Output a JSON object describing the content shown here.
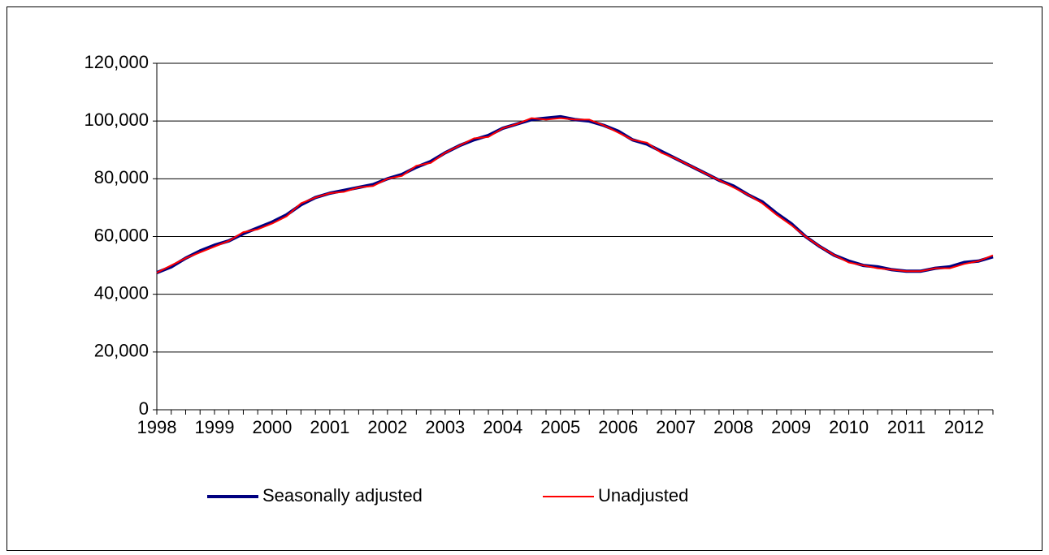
{
  "chart_data": {
    "type": "line",
    "categories": [
      "1998",
      null,
      null,
      null,
      "1999",
      null,
      null,
      null,
      "2000",
      null,
      null,
      null,
      "2001",
      null,
      null,
      null,
      "2002",
      null,
      null,
      null,
      "2003",
      null,
      null,
      null,
      "2004",
      null,
      null,
      null,
      "2005",
      null,
      null,
      null,
      "2006",
      null,
      null,
      null,
      "2007",
      null,
      null,
      null,
      "2008",
      null,
      null,
      null,
      "2009",
      null,
      null,
      null,
      "2010",
      null,
      null,
      null,
      "2011",
      null,
      null,
      null,
      "2012",
      null,
      null
    ],
    "series": [
      {
        "name": "Seasonally adjusted",
        "color": "#000080",
        "values": [
          47500,
          49500,
          52500,
          55000,
          57000,
          58500,
          61000,
          63000,
          65000,
          67500,
          71000,
          73500,
          75000,
          76000,
          77000,
          78000,
          80000,
          81500,
          84000,
          86000,
          89000,
          91500,
          93500,
          95000,
          97500,
          99000,
          100500,
          101000,
          101500,
          100500,
          100000,
          98500,
          96500,
          93500,
          92000,
          89500,
          87000,
          84500,
          82000,
          79500,
          77500,
          74500,
          72000,
          68000,
          64500,
          60000,
          56500,
          53500,
          51500,
          50000,
          49500,
          48500,
          48000,
          48000,
          49000,
          49500,
          51000,
          51500,
          53000
        ]
      },
      {
        "name": "Unadjusted",
        "color": "#ff0000",
        "values": [
          47500,
          50000,
          52500,
          54500,
          56500,
          58500,
          61500,
          62500,
          64500,
          67000,
          71500,
          73500,
          75000,
          75500,
          77000,
          77500,
          80000,
          81000,
          84500,
          85500,
          89000,
          91500,
          94000,
          94500,
          97500,
          99000,
          101000,
          100500,
          101000,
          100500,
          100500,
          98500,
          96000,
          93500,
          92500,
          89000,
          87000,
          84500,
          82000,
          79500,
          77000,
          74500,
          71500,
          67500,
          64000,
          60000,
          56500,
          53500,
          51000,
          50000,
          49000,
          48500,
          48000,
          48000,
          49000,
          49000,
          50500,
          51500,
          53500
        ]
      }
    ],
    "ylim": [
      0,
      120000
    ],
    "yticks": [
      0,
      {
        "value": 20000,
        "label": "20,000"
      },
      {
        "value": 40000,
        "label": "40,000"
      },
      {
        "value": 60000,
        "label": "60,000"
      },
      {
        "value": 80000,
        "label": "80,000"
      },
      {
        "value": 100000,
        "label": "100,000"
      },
      {
        "value": 120000,
        "label": "120,000"
      }
    ],
    "grid": true,
    "legend": "bottom"
  }
}
